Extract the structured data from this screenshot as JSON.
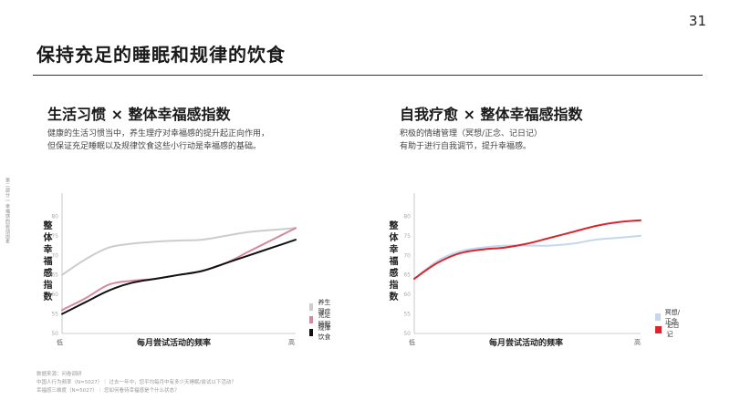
{
  "page": {
    "number": "31",
    "title": "保持充足的睡眠和规律的饮食",
    "side_label": "第二部分 | 幸福感的驱动因素"
  },
  "panels": [
    {
      "title": "生活习惯 × 整体幸福感指数",
      "desc_line1": "健康的生活习惯当中，养生理疗对幸福感的提升起正向作用，",
      "desc_line2": "但保证充足睡眠以及规律饮食这些小行动是幸福感的基础。",
      "ylabel": "整体幸福感指数",
      "xlabel": "每月尝试活动的频率",
      "x_low": "低",
      "x_high": "高"
    },
    {
      "title": "自我疗愈 × 整体幸福感指数",
      "desc_line1": "积极的情绪管理（冥想/正念、记日记）",
      "desc_line2": "有助于进行自我调节，提升幸福感。",
      "ylabel": "整体幸福感指数",
      "xlabel": "每月尝试活动的频率",
      "x_low": "低",
      "x_high": "高"
    }
  ],
  "source": {
    "line1": "数据来源：问卷调研",
    "line2": "中国人行为频率（N=5027）｜ 过去一年中，您平均每月中有多少天睡眠/尝试以下活动？",
    "line3": "幸福感三维度（N=5027）｜ 您如何看待幸福感是个什么状态？"
  },
  "chart_data": [
    {
      "type": "line",
      "title": "生活习惯 × 整体幸福感指数",
      "xlabel": "每月尝试活动的频率",
      "ylabel": "整体幸福感指数",
      "x": [
        0,
        0.1,
        0.2,
        0.3,
        0.4,
        0.5,
        0.6,
        0.7,
        0.8,
        0.9,
        1.0
      ],
      "x_tick_labels": [
        "低",
        "高"
      ],
      "ylim": [
        50,
        85
      ],
      "yticks": [
        50,
        55,
        60,
        65,
        70,
        75,
        80
      ],
      "legend_position": "bottom-right",
      "grid": false,
      "series": [
        {
          "name": "养生理疗",
          "color": "#cccccc",
          "values": [
            65,
            69,
            72,
            73,
            73.5,
            73.8,
            74,
            75,
            76,
            76.5,
            77
          ]
        },
        {
          "name": "充足睡眠",
          "color": "#d48a9c",
          "values": [
            56,
            59,
            62.5,
            63.5,
            64,
            65,
            66,
            68,
            71,
            74,
            77
          ]
        },
        {
          "name": "规律饮食",
          "color": "#111111",
          "values": [
            55,
            58,
            61,
            63,
            64,
            65,
            66,
            68,
            70,
            72,
            74
          ]
        }
      ]
    },
    {
      "type": "line",
      "title": "自我疗愈 × 整体幸福感指数",
      "xlabel": "每月尝试活动的频率",
      "ylabel": "整体幸福感指数",
      "x": [
        0,
        0.1,
        0.2,
        0.3,
        0.4,
        0.5,
        0.6,
        0.7,
        0.8,
        0.9,
        1.0
      ],
      "x_tick_labels": [
        "低",
        "高"
      ],
      "ylim": [
        50,
        85
      ],
      "yticks": [
        50,
        55,
        60,
        65,
        70,
        75,
        80
      ],
      "legend_position": "bottom-right",
      "grid": false,
      "series": [
        {
          "name": "冥想/正念",
          "color": "#c5d7ef",
          "values": [
            64,
            68.5,
            71,
            72,
            72.5,
            72.5,
            72.5,
            73,
            74,
            74.5,
            75
          ]
        },
        {
          "name": "记日记",
          "color": "#d8262e",
          "values": [
            64,
            68,
            70.5,
            71.5,
            72,
            73,
            74.5,
            76,
            77.5,
            78.5,
            79
          ]
        }
      ]
    }
  ]
}
